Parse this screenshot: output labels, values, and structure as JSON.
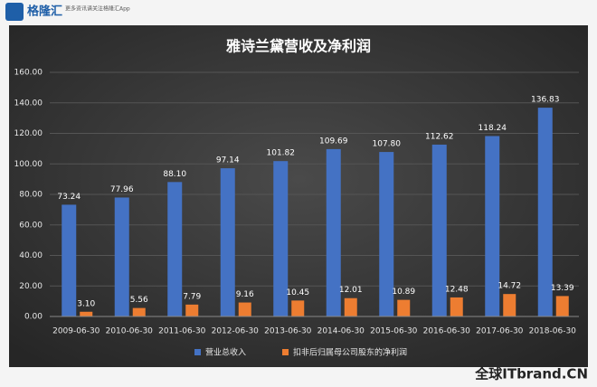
{
  "header": {
    "logo": "格隆汇",
    "tagline": "更多资讯请关注格隆汇App"
  },
  "watermark": "全球ITbrand.CN",
  "chart_data": {
    "type": "bar",
    "title": "雅诗兰黛营收及净利润",
    "categories": [
      "2009-06-30",
      "2010-06-30",
      "2011-06-30",
      "2012-06-30",
      "2013-06-30",
      "2014-06-30",
      "2015-06-30",
      "2016-06-30",
      "2017-06-30",
      "2018-06-30"
    ],
    "series": [
      {
        "name": "营业总收入",
        "color": "#4472c4",
        "values": [
          73.24,
          77.96,
          88.1,
          97.14,
          101.82,
          109.69,
          107.8,
          112.62,
          118.24,
          136.83
        ],
        "value_labels": [
          "73.24",
          "77.96",
          "88.10",
          "97.14",
          "101.82",
          "109.69",
          "107.80",
          "112.62",
          "118.24",
          "136.83"
        ]
      },
      {
        "name": "扣非后归属母公司股东的净利润",
        "color": "#ed7d31",
        "values": [
          3.1,
          5.56,
          7.79,
          9.16,
          10.45,
          12.01,
          10.89,
          12.48,
          14.72,
          13.39
        ],
        "value_labels": [
          "3.10",
          "5.56",
          "7.79",
          "9.16",
          "10.45",
          "12.01",
          "10.89",
          "12.48",
          "14.72",
          "13.39"
        ]
      }
    ],
    "ylim": [
      0,
      160
    ],
    "yticks": [
      {
        "value": 0,
        "label": "0.00"
      },
      {
        "value": 20,
        "label": "20.00"
      },
      {
        "value": 40,
        "label": "40.00"
      },
      {
        "value": 60,
        "label": "60.00"
      },
      {
        "value": 80,
        "label": "80.00"
      },
      {
        "value": 100,
        "label": "100.00"
      },
      {
        "value": 120,
        "label": "120.00"
      },
      {
        "value": 140,
        "label": "140.00"
      },
      {
        "value": 160,
        "label": "160.00"
      }
    ],
    "grid": true,
    "legend": "bottom"
  }
}
